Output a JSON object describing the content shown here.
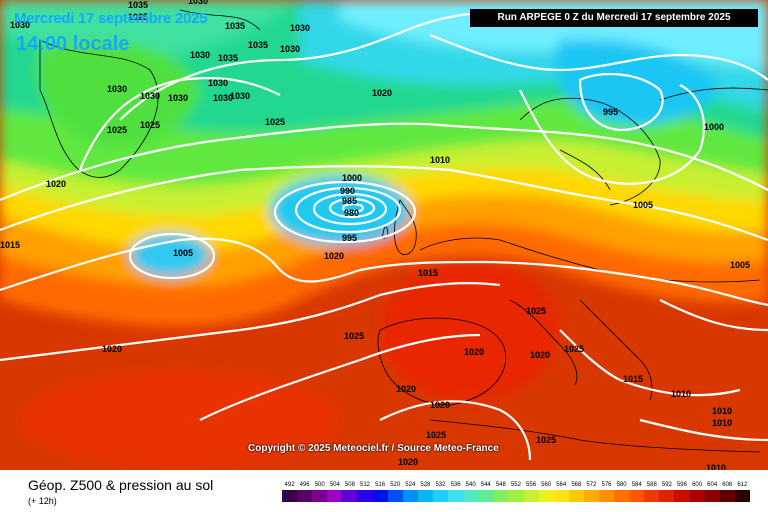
{
  "header": {
    "date": "Mercredi 17 septembre 2025",
    "time": "14:00 locale"
  },
  "run_label": "Run ARPEGE 0 Z du Mercredi 17 septembre 2025",
  "copyright": "Copyright © 2025 Meteociel.fr / Source Meteo-France",
  "footer": {
    "title": "Géop. Z500 & pression au sol",
    "subtitle": "(+ 12h)"
  },
  "legend": {
    "labels": [
      "492",
      "496",
      "500",
      "504",
      "508",
      "512",
      "516",
      "520",
      "524",
      "528",
      "532",
      "536",
      "540",
      "544",
      "548",
      "552",
      "556",
      "560",
      "564",
      "568",
      "572",
      "576",
      "580",
      "584",
      "588",
      "592",
      "596",
      "600",
      "604",
      "608",
      "612"
    ],
    "colors": [
      "#3a0044",
      "#55006a",
      "#7a0095",
      "#9a00c0",
      "#6000d8",
      "#2a00e8",
      "#0010f0",
      "#0050f4",
      "#0090f6",
      "#00b8f8",
      "#1ed0f8",
      "#3ce0f0",
      "#50e8c0",
      "#60ec90",
      "#80f060",
      "#a0f040",
      "#c8f030",
      "#ecf020",
      "#ffe410",
      "#ffc800",
      "#ffac00",
      "#ff9000",
      "#ff7000",
      "#ff5400",
      "#f03800",
      "#e02000",
      "#c80c00",
      "#a80000",
      "#880000",
      "#600000",
      "#300000"
    ]
  },
  "isobar_labels": [
    "1030",
    "1035",
    "1030",
    "1035",
    "1030",
    "1025",
    "1030",
    "1035",
    "1030",
    "1035",
    "1030",
    "1030",
    "1030",
    "1030",
    "1030",
    "1030",
    "1025",
    "1025",
    "1020",
    "1025",
    "1020",
    "1010",
    "995",
    "1000",
    "1000",
    "990",
    "985",
    "980",
    "995",
    "1005",
    "1005",
    "1015",
    "1015",
    "1020",
    "1020",
    "1025",
    "1025",
    "1020",
    "1020",
    "1025",
    "1020",
    "1020",
    "1025",
    "1025",
    "1020",
    "1015",
    "1010",
    "1010",
    "1010",
    "1010",
    "1005",
    "1015",
    "1020"
  ],
  "colors": {
    "header_text": "#15a8ff",
    "run_box_bg": "#000000",
    "isobar": "#ffffff",
    "coastline": "#000000"
  }
}
